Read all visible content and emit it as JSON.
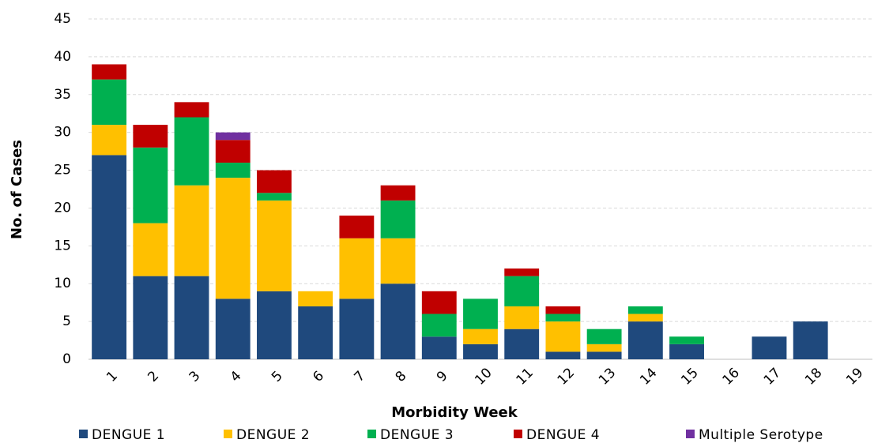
{
  "chart_data": {
    "type": "stacked_bar",
    "xlabel": "Morbidity Week",
    "ylabel": "No. of Cases",
    "categories": [
      "1",
      "2",
      "3",
      "4",
      "5",
      "6",
      "7",
      "8",
      "9",
      "10",
      "11",
      "12",
      "13",
      "14",
      "15",
      "16",
      "17",
      "18",
      "19"
    ],
    "series": [
      {
        "name": "DENGUE 1",
        "color": "#1f497d",
        "values": [
          27,
          11,
          11,
          8,
          9,
          7,
          8,
          10,
          3,
          2,
          4,
          1,
          1,
          5,
          2,
          0,
          3,
          5,
          0
        ]
      },
      {
        "name": "DENGUE 2",
        "color": "#ffc000",
        "values": [
          4,
          7,
          12,
          16,
          12,
          2,
          8,
          6,
          0,
          2,
          3,
          4,
          1,
          1,
          0,
          0,
          0,
          0,
          0
        ]
      },
      {
        "name": "DENGUE 3",
        "color": "#00b050",
        "values": [
          6,
          10,
          9,
          2,
          1,
          0,
          0,
          5,
          3,
          4,
          4,
          1,
          2,
          1,
          1,
          0,
          0,
          0,
          0
        ]
      },
      {
        "name": "DENGUE 4",
        "color": "#c00000",
        "values": [
          2,
          3,
          2,
          3,
          3,
          0,
          3,
          2,
          3,
          0,
          1,
          1,
          0,
          0,
          0,
          0,
          0,
          0,
          0
        ]
      },
      {
        "name": "Multiple Serotype",
        "color": "#7030a0",
        "values": [
          0,
          0,
          0,
          1,
          0,
          0,
          0,
          0,
          0,
          0,
          0,
          0,
          0,
          0,
          0,
          0,
          0,
          0,
          0
        ]
      }
    ],
    "ylim": [
      0,
      45
    ],
    "yticks": [
      0,
      5,
      10,
      15,
      20,
      25,
      30,
      35,
      40,
      45
    ],
    "grid": true,
    "legend": "bottom"
  }
}
